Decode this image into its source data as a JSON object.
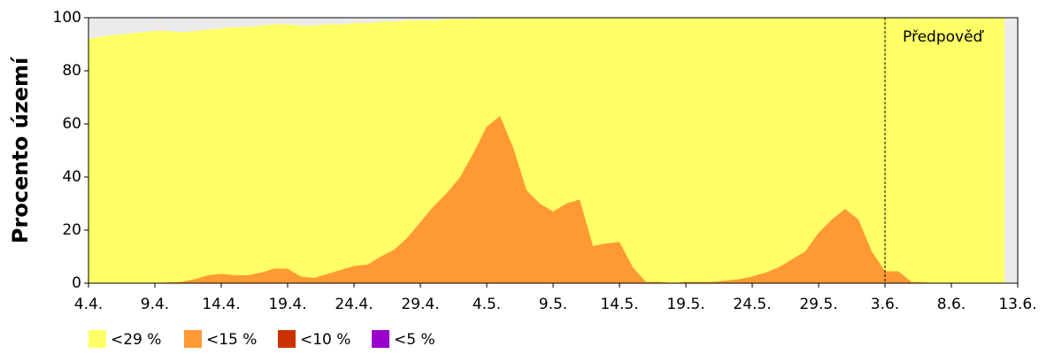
{
  "chart_data": {
    "type": "area",
    "y_label": "Procento území",
    "annotation": "Předpověď",
    "forecast_from": "3.6.",
    "categories": [
      "4.4.",
      null,
      null,
      null,
      null,
      "9.4.",
      null,
      null,
      null,
      null,
      "14.4.",
      null,
      null,
      null,
      null,
      "19.4.",
      null,
      null,
      null,
      null,
      "24.4.",
      null,
      null,
      null,
      null,
      "29.4.",
      null,
      null,
      null,
      null,
      "4.5.",
      null,
      null,
      null,
      null,
      "9.5.",
      null,
      null,
      null,
      null,
      "14.5.",
      null,
      null,
      null,
      null,
      "19.5.",
      null,
      null,
      null,
      null,
      "24.5.",
      null,
      null,
      null,
      null,
      "29.5.",
      null,
      null,
      null,
      null,
      "3.6.",
      null,
      null,
      null,
      null,
      "8.6.",
      null,
      null,
      null,
      null,
      "13.6."
    ],
    "series": [
      {
        "name": "<29 %",
        "color": "#ffff66",
        "values": [
          92,
          93,
          93.5,
          94,
          94.5,
          95,
          95,
          94.5,
          95,
          95.5,
          96,
          96.5,
          96.5,
          97,
          97.5,
          97.5,
          97,
          97,
          97.5,
          97.5,
          98,
          98,
          98.5,
          98.5,
          99,
          99,
          99,
          99.5,
          99.5,
          99.5,
          100,
          100,
          100,
          100,
          100,
          100,
          100,
          100,
          100,
          100,
          100,
          100,
          100,
          100,
          100,
          100,
          100,
          100,
          100,
          100,
          100,
          100,
          100,
          100,
          100,
          100,
          100,
          100,
          100,
          100,
          100,
          100,
          100,
          100,
          100,
          100,
          100,
          100,
          100,
          100,
          null
        ]
      },
      {
        "name": "<15 %",
        "color": "#ff9933",
        "values": [
          0,
          0,
          0,
          0,
          0,
          0,
          0.3,
          0.5,
          1.5,
          3,
          3.5,
          3,
          3,
          4,
          5.5,
          5.5,
          2.5,
          2,
          3.5,
          5,
          6.5,
          7,
          10,
          12.5,
          17,
          23,
          29,
          34,
          40,
          49,
          59,
          63,
          51,
          35,
          30,
          27,
          30,
          31.5,
          14,
          15,
          15.5,
          6,
          0.5,
          0.5,
          0,
          0.5,
          0.5,
          0.5,
          1,
          1.5,
          2.5,
          4,
          6,
          9,
          12,
          19,
          24,
          28,
          24,
          12,
          4.5,
          4.5,
          0.5,
          0.3,
          0,
          0,
          0,
          0,
          0,
          0,
          null
        ]
      },
      {
        "name": "<10 %",
        "color": "#cc3300",
        "values": [
          0,
          0,
          0,
          0,
          0,
          0,
          0,
          0,
          0,
          0,
          0,
          0,
          0,
          0,
          0,
          0,
          0,
          0,
          0,
          0,
          0,
          0,
          0,
          0,
          0,
          0,
          0,
          0,
          0,
          0,
          0,
          0,
          0,
          0,
          0,
          0,
          0,
          0,
          0,
          0,
          0,
          0,
          0,
          0,
          0,
          0,
          0,
          0,
          0,
          0,
          0,
          0,
          0,
          0,
          0,
          0,
          0,
          0,
          0,
          0,
          0,
          0,
          0,
          0,
          0,
          0,
          0,
          0,
          0,
          0,
          null
        ]
      },
      {
        "name": "<5 %",
        "color": "#9900cc",
        "values": [
          0,
          0,
          0,
          0,
          0,
          0,
          0,
          0,
          0,
          0,
          0,
          0,
          0,
          0,
          0,
          0,
          0,
          0,
          0,
          0,
          0,
          0,
          0,
          0,
          0,
          0,
          0,
          0,
          0,
          0,
          0,
          0,
          0,
          0,
          0,
          0,
          0,
          0,
          0,
          0,
          0,
          0,
          0,
          0,
          0,
          0,
          0,
          0,
          0,
          0,
          0,
          0,
          0,
          0,
          0,
          0,
          0,
          0,
          0,
          0,
          0,
          0,
          0,
          0,
          0,
          0,
          0,
          0,
          0,
          0,
          null
        ]
      }
    ],
    "ylim": [
      0,
      100
    ],
    "yticks": [
      0,
      20,
      40,
      60,
      80,
      100
    ],
    "grid": false
  }
}
